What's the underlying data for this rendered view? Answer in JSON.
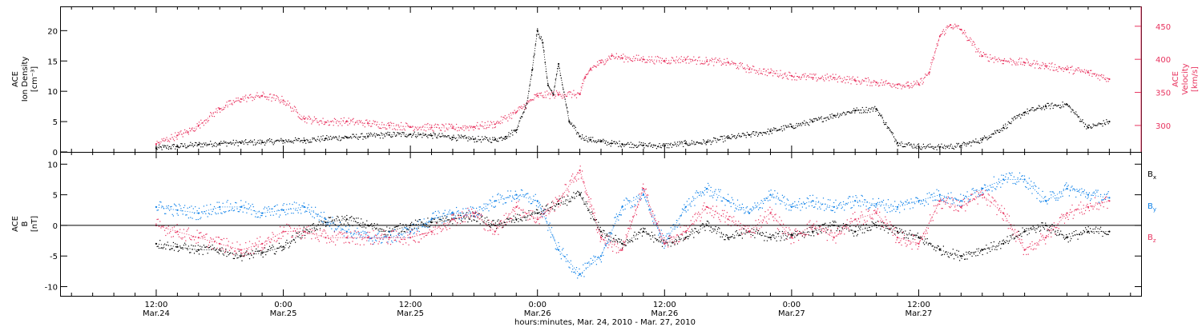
{
  "chart_data": [
    {
      "type": "scatter",
      "panel": "top",
      "ylabel_lines": [
        "ACE",
        "Ion Density",
        "[cm⁻³]"
      ],
      "ylabel2_lines": [
        "ACE",
        "Velocity",
        "[km/s]"
      ],
      "ylim": [
        0,
        24
      ],
      "yticks": [
        0,
        5,
        10,
        15,
        20
      ],
      "y2lim": [
        260,
        480
      ],
      "y2ticks": [
        300,
        350,
        400,
        450
      ],
      "colors": {
        "density": "#000000",
        "velocity": "#e8335f"
      },
      "series": [
        {
          "key": "density",
          "axis": "left",
          "x": [
            0,
            2,
            4,
            6,
            8,
            10,
            12,
            14,
            16,
            18,
            20,
            22,
            24,
            26,
            28,
            30,
            32,
            33,
            34,
            35,
            35.5,
            36,
            36.5,
            37,
            37.5,
            38,
            39,
            40,
            41,
            42,
            43,
            44,
            46,
            48,
            50,
            52,
            54,
            56,
            58,
            60,
            62,
            64,
            66,
            68,
            70,
            72,
            74,
            76,
            78,
            80,
            82,
            84,
            86,
            88,
            90
          ],
          "y": [
            0.6,
            0.9,
            1.2,
            1.4,
            1.5,
            1.6,
            1.8,
            1.9,
            2.2,
            2.4,
            2.6,
            2.8,
            2.9,
            2.7,
            2.4,
            2.1,
            2.0,
            2.5,
            3.6,
            8.0,
            13.5,
            20.0,
            18.0,
            11.0,
            9.5,
            14.5,
            5.0,
            2.6,
            2.0,
            1.7,
            1.4,
            1.3,
            1.1,
            1.0,
            1.4,
            1.6,
            2.3,
            2.8,
            3.4,
            4.2,
            5.0,
            6.0,
            6.8,
            7.1,
            1.5,
            0.9,
            0.8,
            1.0,
            2.0,
            4.0,
            6.5,
            7.5,
            7.8,
            4.0,
            5.0
          ]
        },
        {
          "key": "velocity",
          "axis": "right",
          "x": [
            0,
            2,
            3,
            4,
            6,
            8,
            10,
            12,
            14,
            16,
            18,
            20,
            22,
            24,
            26,
            28,
            30,
            32,
            34,
            36,
            38,
            40,
            40.5,
            41,
            42,
            43,
            44,
            46,
            48,
            50,
            52,
            54,
            56,
            58,
            60,
            62,
            64,
            66,
            68,
            70,
            71,
            72,
            73,
            74,
            75,
            76,
            78,
            80,
            82,
            84,
            86,
            88,
            90
          ],
          "y": [
            272,
            285,
            290,
            300,
            325,
            340,
            345,
            338,
            310,
            305,
            306,
            303,
            300,
            298,
            297,
            296,
            298,
            302,
            320,
            345,
            347,
            347,
            372,
            385,
            395,
            405,
            402,
            400,
            398,
            400,
            397,
            395,
            385,
            380,
            375,
            372,
            372,
            368,
            365,
            362,
            360,
            362,
            380,
            435,
            452,
            445,
            405,
            398,
            395,
            390,
            385,
            380,
            370
          ]
        }
      ]
    },
    {
      "type": "scatter",
      "panel": "bottom",
      "ylabel_lines": [
        "ACE",
        "B",
        "[nT]"
      ],
      "ylim": [
        -11.5,
        12
      ],
      "yticks": [
        -10,
        -5,
        0,
        5,
        10
      ],
      "zero_line": true,
      "colors": {
        "bx": "#000000",
        "by": "#0a7fe8",
        "bz": "#e8335f"
      },
      "series": [
        {
          "key": "bx",
          "name_main": "B",
          "name_sub": "x",
          "x": [
            0,
            2,
            4,
            6,
            8,
            10,
            12,
            14,
            16,
            18,
            20,
            22,
            24,
            26,
            28,
            30,
            32,
            34,
            36,
            38,
            40,
            42,
            44,
            46,
            48,
            50,
            52,
            54,
            56,
            58,
            60,
            62,
            64,
            66,
            68,
            70,
            72,
            74,
            76,
            78,
            80,
            82,
            84,
            86,
            88,
            90
          ],
          "y": [
            -3,
            -3.5,
            -4,
            -4,
            -5,
            -4.5,
            -3.5,
            -1,
            0.5,
            1,
            0,
            -1,
            0,
            0.5,
            1,
            1.5,
            0,
            1,
            2,
            3.5,
            5,
            -1,
            -3,
            -1,
            -3,
            -2,
            0,
            -2,
            -1,
            -2,
            -1.5,
            -1,
            0,
            -1,
            0,
            -1,
            -2,
            -4,
            -5,
            -4,
            -3,
            -1,
            0,
            -2,
            -1,
            -1
          ]
        },
        {
          "key": "by",
          "name_main": "B",
          "name_sub": "y",
          "x": [
            0,
            2,
            4,
            6,
            8,
            10,
            12,
            14,
            16,
            18,
            20,
            22,
            24,
            26,
            28,
            30,
            32,
            34,
            36,
            38,
            40,
            42,
            44,
            46,
            48,
            50,
            52,
            54,
            56,
            58,
            60,
            62,
            64,
            66,
            68,
            70,
            72,
            74,
            76,
            78,
            80,
            82,
            84,
            86,
            88,
            90
          ],
          "y": [
            3,
            2.5,
            2,
            3,
            3,
            2,
            2.5,
            3,
            1,
            -1,
            -2,
            -2,
            -1,
            1,
            2,
            2,
            4,
            5,
            4,
            -4,
            -8,
            -5,
            3,
            5,
            -3,
            3,
            6,
            4,
            2,
            5,
            3,
            4,
            3,
            4,
            3.5,
            3,
            4,
            5,
            4,
            6,
            7.5,
            7.5,
            4,
            6,
            5,
            4.5
          ]
        },
        {
          "key": "bz",
          "name_main": "B",
          "name_sub": "z",
          "x": [
            0,
            2,
            4,
            6,
            8,
            10,
            12,
            14,
            16,
            18,
            20,
            22,
            24,
            26,
            28,
            30,
            32,
            34,
            36,
            38,
            40,
            42,
            44,
            46,
            48,
            50,
            52,
            54,
            56,
            58,
            60,
            62,
            64,
            66,
            68,
            70,
            72,
            74,
            76,
            78,
            80,
            82,
            84,
            86,
            88,
            90
          ],
          "y": [
            0,
            -1,
            -2,
            -3,
            -4,
            -3,
            -1,
            -1,
            -2,
            -2,
            -2,
            -2,
            -2,
            -1,
            1,
            2,
            -1,
            3,
            1,
            4,
            9,
            -2,
            -4,
            6,
            -3,
            -1,
            3,
            1,
            -1,
            2,
            -2,
            0,
            -2,
            1,
            2,
            -2,
            -3,
            4,
            3,
            5,
            2,
            -4,
            -2,
            2,
            3,
            4
          ]
        }
      ]
    }
  ],
  "x_axis": {
    "xlim": [
      -9,
      93
    ],
    "ticks": [
      {
        "x": 0,
        "top": "12:00",
        "bottom": "Mar.24"
      },
      {
        "x": 12,
        "top": "0:00",
        "bottom": "Mar.25"
      },
      {
        "x": 24,
        "top": "12:00",
        "bottom": "Mar.25"
      },
      {
        "x": 36,
        "top": "0:00",
        "bottom": "Mar.26"
      },
      {
        "x": 48,
        "top": "12:00",
        "bottom": "Mar.26"
      },
      {
        "x": 60,
        "top": "0:00",
        "bottom": "Mar.27"
      },
      {
        "x": 72,
        "top": "12:00",
        "bottom": "Mar.27"
      }
    ],
    "xlabel": "hours:minutes, Mar. 24, 2010 - Mar. 27, 2010"
  }
}
